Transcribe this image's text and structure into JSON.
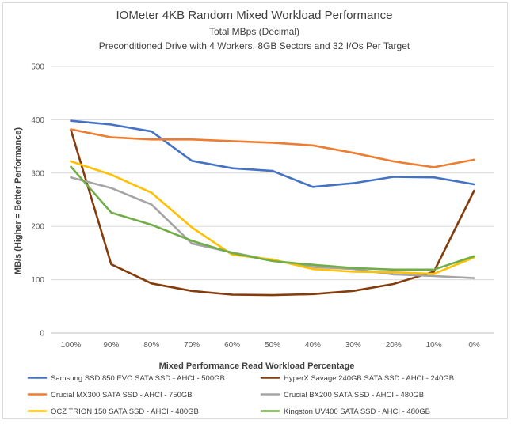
{
  "chart_data": {
    "type": "line",
    "title": "IOMeter 4KB Random Mixed Workload Performance",
    "subtitle": "Total MBps (Decimal)",
    "subtitle2": "Preconditioned Drive with 4 Workers, 8GB Sectors and 32 I/Os Per Target",
    "xlabel": "Mixed Performance Read Workload Percentage",
    "ylabel": "MB/s (Higher = Better Performance)",
    "categories": [
      "100%",
      "90%",
      "80%",
      "70%",
      "60%",
      "50%",
      "40%",
      "30%",
      "20%",
      "10%",
      "0%"
    ],
    "ylim": [
      0,
      500
    ],
    "yticks": [
      0,
      100,
      200,
      300,
      400,
      500
    ],
    "grid": true,
    "legend_position": "bottom",
    "series": [
      {
        "name": "Samsung SSD 850 EVO SATA SSD - AHCI - 500GB",
        "color": "#4472c4",
        "values": [
          398,
          391,
          378,
          323,
          309,
          304,
          274,
          281,
          293,
          292,
          279
        ]
      },
      {
        "name": "HyperX Savage 240GB SATA SSD - AHCI - 240GB",
        "color": "#843c0c",
        "values": [
          381,
          129,
          93,
          79,
          72,
          71,
          73,
          79,
          92,
          115,
          267
        ]
      },
      {
        "name": "Crucial MX300 SATA SSD - AHCI - 750GB",
        "color": "#ed7d31",
        "values": [
          382,
          367,
          363,
          363,
          360,
          357,
          352,
          338,
          322,
          311,
          325
        ]
      },
      {
        "name": "Crucial BX200 SATA SSD - AHCI - 480GB",
        "color": "#a5a5a5",
        "values": [
          292,
          272,
          241,
          168,
          151,
          136,
          124,
          120,
          110,
          107,
          103
        ]
      },
      {
        "name": "OCZ TRION 150 SATA SSD - AHCI - 480GB",
        "color": "#ffc000",
        "values": [
          322,
          297,
          263,
          198,
          147,
          138,
          120,
          115,
          114,
          111,
          142
        ]
      },
      {
        "name": "Kingston UV400 SATA SSD - AHCI - 480GB",
        "color": "#70ad47",
        "values": [
          312,
          226,
          203,
          173,
          150,
          135,
          128,
          122,
          119,
          119,
          144
        ]
      }
    ]
  }
}
